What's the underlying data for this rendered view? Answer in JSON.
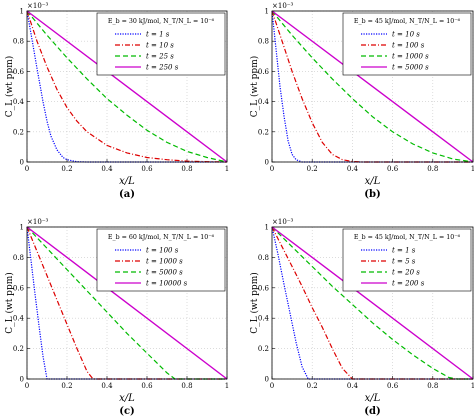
{
  "figure": {
    "panels": [
      "(a)",
      "(b)",
      "(c)",
      "(d)"
    ]
  },
  "chart_data": [
    {
      "panel_label": "(a)",
      "type": "line",
      "xlabel": "x/L",
      "ylabel": "C_L (wt ppm)",
      "exponent_label": "×10⁻³",
      "xlim": [
        0,
        1
      ],
      "ylim": [
        0,
        1
      ],
      "xticks": [
        "0",
        "0.2",
        "0.4",
        "0.6",
        "0.8",
        "1"
      ],
      "yticks": [
        "0",
        "0.2",
        "0.4",
        "0.6",
        "0.8",
        "1"
      ],
      "grid": "dotted",
      "legend_placement": "top-right",
      "legend_title": "E_b = 30 kJ/mol, N_T/N_L = 10⁻⁶",
      "series": [
        {
          "name": "t = 1 s",
          "color": "#0000ff",
          "style": "dotted",
          "x": [
            0,
            0.02,
            0.05,
            0.08,
            0.1,
            0.12,
            0.15,
            0.18,
            0.2,
            0.25,
            0.3,
            1
          ],
          "y": [
            1,
            0.85,
            0.62,
            0.4,
            0.27,
            0.17,
            0.08,
            0.03,
            0.015,
            0.002,
            0,
            0
          ]
        },
        {
          "name": "t = 10 s",
          "color": "#dd0000",
          "style": "dashdot",
          "x": [
            0,
            0.05,
            0.1,
            0.15,
            0.2,
            0.25,
            0.3,
            0.4,
            0.5,
            0.6,
            0.7,
            0.8,
            0.9,
            1
          ],
          "y": [
            1,
            0.8,
            0.63,
            0.48,
            0.36,
            0.27,
            0.2,
            0.11,
            0.06,
            0.03,
            0.015,
            0.006,
            0.002,
            0
          ]
        },
        {
          "name": "t = 25 s",
          "color": "#00bb00",
          "style": "dashed",
          "x": [
            0,
            0.1,
            0.2,
            0.3,
            0.4,
            0.5,
            0.6,
            0.7,
            0.8,
            0.9,
            1
          ],
          "y": [
            1,
            0.84,
            0.69,
            0.55,
            0.42,
            0.31,
            0.21,
            0.13,
            0.07,
            0.03,
            0
          ]
        },
        {
          "name": "t = 250 s",
          "color": "#cc00cc",
          "style": "solid",
          "x": [
            0,
            1
          ],
          "y": [
            1,
            0
          ]
        }
      ]
    },
    {
      "panel_label": "(b)",
      "type": "line",
      "xlabel": "x/L",
      "ylabel": "C_L (wt ppm)",
      "exponent_label": "×10⁻³",
      "xlim": [
        0,
        1
      ],
      "ylim": [
        0,
        1
      ],
      "xticks": [
        "0",
        "0.2",
        "0.4",
        "0.6",
        "0.8",
        "1"
      ],
      "yticks": [
        "0",
        "0.2",
        "0.4",
        "0.6",
        "0.8",
        "1"
      ],
      "grid": "dotted",
      "legend_placement": "top-right",
      "legend_title": "E_b = 45 kJ/mol, N_T/N_L = 10⁻⁶",
      "series": [
        {
          "name": "t = 10 s",
          "color": "#0000ff",
          "style": "dotted",
          "x": [
            0,
            0.02,
            0.04,
            0.06,
            0.08,
            0.1,
            0.12,
            0.15,
            0.2,
            1
          ],
          "y": [
            1,
            0.75,
            0.5,
            0.3,
            0.14,
            0.05,
            0.015,
            0,
            0,
            0
          ]
        },
        {
          "name": "t = 100 s",
          "color": "#dd0000",
          "style": "dashdot",
          "x": [
            0,
            0.05,
            0.1,
            0.15,
            0.2,
            0.25,
            0.3,
            0.35,
            0.4,
            0.45,
            1
          ],
          "y": [
            1,
            0.8,
            0.6,
            0.42,
            0.26,
            0.13,
            0.05,
            0.015,
            0.003,
            0,
            0
          ]
        },
        {
          "name": "t = 1000 s",
          "color": "#00bb00",
          "style": "dashed",
          "x": [
            0,
            0.1,
            0.2,
            0.3,
            0.4,
            0.5,
            0.6,
            0.7,
            0.8,
            0.9,
            1
          ],
          "y": [
            1,
            0.84,
            0.69,
            0.55,
            0.42,
            0.3,
            0.2,
            0.12,
            0.06,
            0.02,
            0
          ]
        },
        {
          "name": "t = 5000 s",
          "color": "#cc00cc",
          "style": "solid",
          "x": [
            0,
            1
          ],
          "y": [
            1,
            0
          ]
        }
      ]
    },
    {
      "panel_label": "(c)",
      "type": "line",
      "xlabel": "x/L",
      "ylabel": "C_L (wt ppm)",
      "exponent_label": "×10⁻³",
      "xlim": [
        0,
        1
      ],
      "ylim": [
        0,
        1
      ],
      "xticks": [
        "0",
        "0.2",
        "0.4",
        "0.6",
        "0.8",
        "1"
      ],
      "yticks": [
        "0",
        "0.2",
        "0.4",
        "0.6",
        "0.8",
        "1"
      ],
      "grid": "dotted",
      "legend_placement": "top-right",
      "legend_title": "E_b = 60 kJ/mol, N_T/N_L = 10⁻⁶",
      "series": [
        {
          "name": "t = 100 s",
          "color": "#0000ff",
          "style": "dotted",
          "x": [
            0,
            0.02,
            0.04,
            0.06,
            0.08,
            0.1,
            1
          ],
          "y": [
            1,
            0.78,
            0.56,
            0.35,
            0.15,
            0,
            0
          ]
        },
        {
          "name": "t = 1000 s",
          "color": "#dd0000",
          "style": "dashdot",
          "x": [
            0,
            0.05,
            0.1,
            0.15,
            0.2,
            0.25,
            0.3,
            0.33,
            1
          ],
          "y": [
            1,
            0.84,
            0.68,
            0.52,
            0.36,
            0.2,
            0.05,
            0,
            0
          ]
        },
        {
          "name": "t = 5000 s",
          "color": "#00bb00",
          "style": "dashed",
          "x": [
            0,
            0.1,
            0.2,
            0.3,
            0.4,
            0.5,
            0.6,
            0.7,
            0.74,
            1
          ],
          "y": [
            1,
            0.86,
            0.72,
            0.58,
            0.44,
            0.3,
            0.17,
            0.04,
            0,
            0
          ]
        },
        {
          "name": "t = 10000 s",
          "color": "#cc00cc",
          "style": "solid",
          "x": [
            0,
            1
          ],
          "y": [
            1,
            0
          ]
        }
      ]
    },
    {
      "panel_label": "(d)",
      "type": "line",
      "xlabel": "x/L",
      "ylabel": "C_L (wt ppm)",
      "exponent_label": "×10⁻³",
      "xlim": [
        0,
        1
      ],
      "ylim": [
        0,
        1
      ],
      "xticks": [
        "0",
        "0.2",
        "0.4",
        "0.6",
        "0.8",
        "1"
      ],
      "yticks": [
        "0",
        "0.2",
        "0.4",
        "0.6",
        "0.8",
        "1"
      ],
      "grid": "dotted",
      "legend_placement": "top-right",
      "legend_title": "E_b = 45 kJ/mol, N_T/N_L = 10⁻⁶",
      "series": [
        {
          "name": "t = 1 s",
          "color": "#0000ff",
          "style": "dotted",
          "x": [
            0,
            0.03,
            0.06,
            0.09,
            0.12,
            0.15,
            0.18,
            1
          ],
          "y": [
            1,
            0.82,
            0.62,
            0.43,
            0.24,
            0.08,
            0,
            0
          ]
        },
        {
          "name": "t = 5 s",
          "color": "#dd0000",
          "style": "dashdot",
          "x": [
            0,
            0.05,
            0.1,
            0.15,
            0.2,
            0.25,
            0.3,
            0.35,
            0.4,
            1
          ],
          "y": [
            1,
            0.87,
            0.74,
            0.61,
            0.47,
            0.34,
            0.2,
            0.07,
            0,
            0
          ]
        },
        {
          "name": "t = 20 s",
          "color": "#00bb00",
          "style": "dashed",
          "x": [
            0,
            0.1,
            0.2,
            0.3,
            0.4,
            0.5,
            0.6,
            0.7,
            0.8,
            0.88,
            0.92,
            1
          ],
          "y": [
            1,
            0.87,
            0.74,
            0.61,
            0.49,
            0.37,
            0.26,
            0.16,
            0.07,
            0.01,
            0,
            0
          ]
        },
        {
          "name": "t = 200 s",
          "color": "#cc00cc",
          "style": "solid",
          "x": [
            0,
            1
          ],
          "y": [
            1,
            0
          ]
        }
      ]
    }
  ]
}
